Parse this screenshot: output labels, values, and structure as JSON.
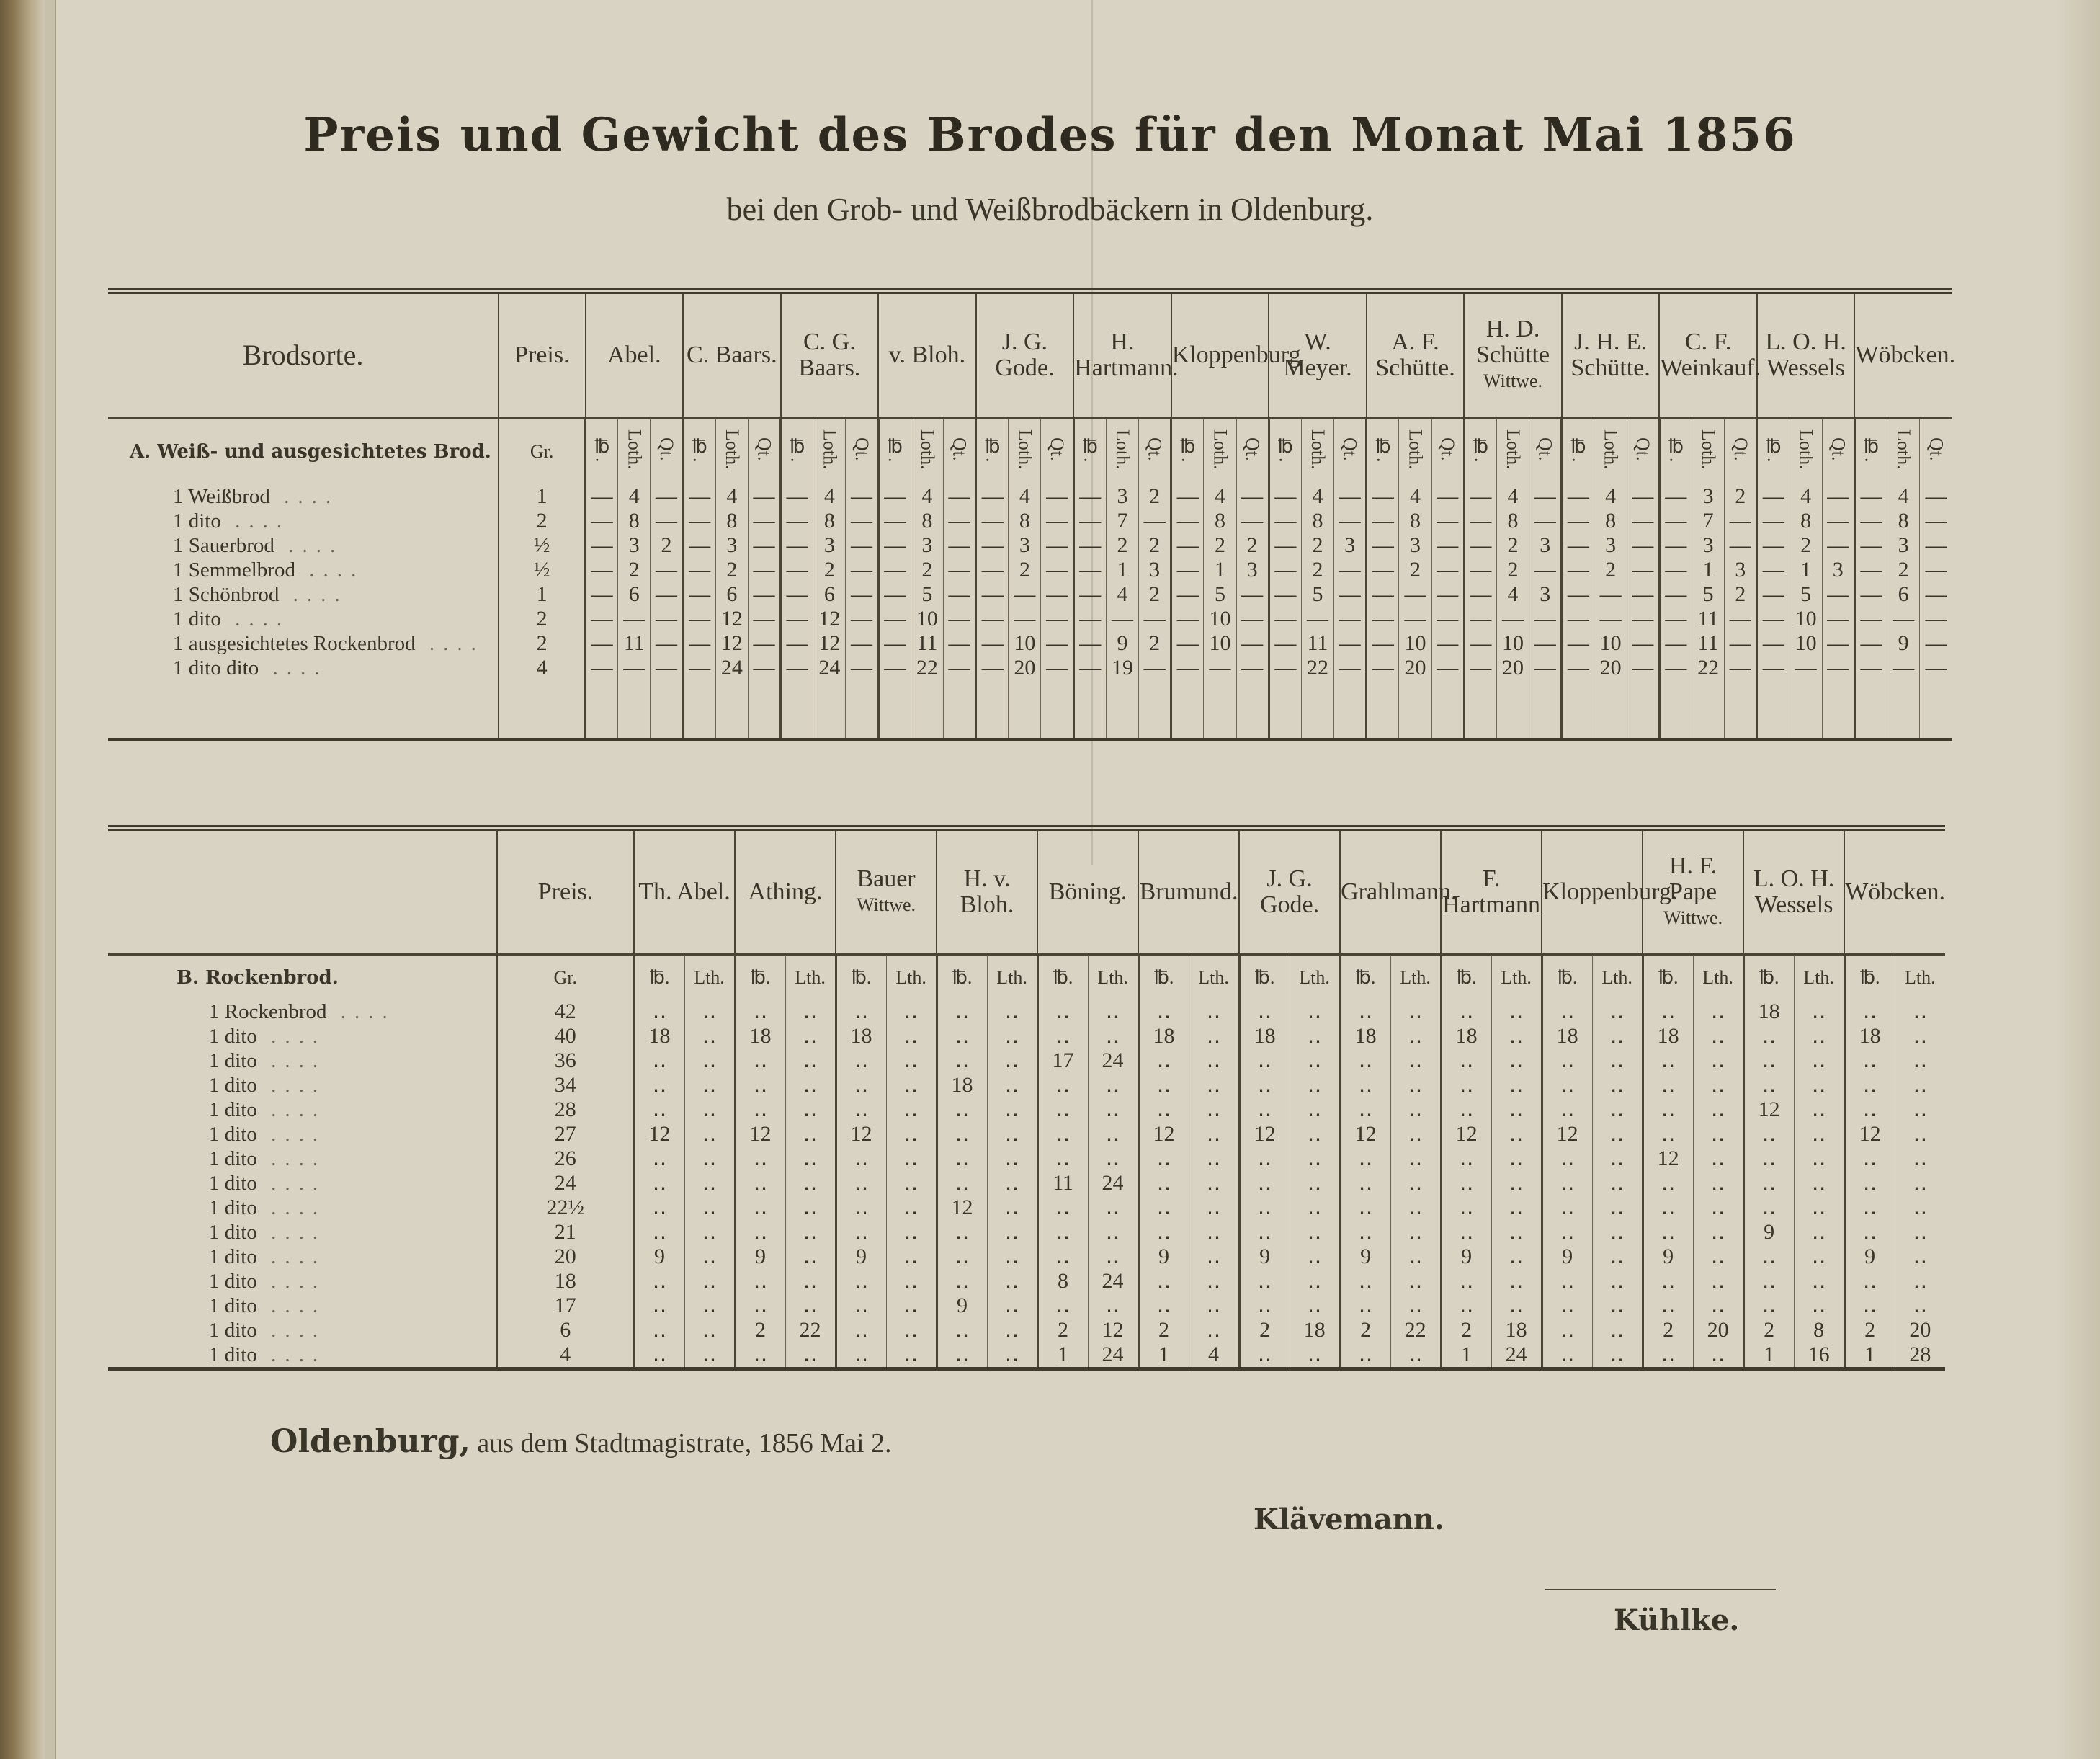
{
  "title": "Preis und Gewicht des Brodes für den Monat Mai 1856",
  "subtitle": "bei den Grob- und Weißbrodbäckern in Oldenburg.",
  "section_a": {
    "col_brodsorte": "Brodsorte.",
    "col_preis": "Preis.",
    "heading": "A. Weiß- und ausgesichtetes Brod.",
    "unit_gr": "Gr.",
    "unit_pfund": "℔.",
    "unit_loth": "Loth.",
    "unit_qt": "Qt.",
    "bakers": [
      {
        "name": "Abel.",
        "sub": ""
      },
      {
        "name": "C. Baars.",
        "sub": ""
      },
      {
        "name": "C. G. Baars.",
        "sub": ""
      },
      {
        "name": "v. Bloh.",
        "sub": ""
      },
      {
        "name": "J. G. Gode.",
        "sub": ""
      },
      {
        "name": "H. Hartmann.",
        "sub": ""
      },
      {
        "name": "Kloppenburg",
        "sub": ""
      },
      {
        "name": "W. Meyer.",
        "sub": ""
      },
      {
        "name": "A. F. Schütte.",
        "sub": ""
      },
      {
        "name": "H. D. Schütte",
        "sub": "Wittwe."
      },
      {
        "name": "J. H. E. Schütte.",
        "sub": ""
      },
      {
        "name": "C. F. Weinkauf.",
        "sub": ""
      },
      {
        "name": "L. O. H. Wessels",
        "sub": ""
      },
      {
        "name": "Wöbcken.",
        "sub": ""
      }
    ],
    "rows": [
      {
        "count": "1",
        "label": "Weißbrod",
        "price": "1"
      },
      {
        "count": "1",
        "label": "dito",
        "price": "2"
      },
      {
        "count": "1",
        "label": "Sauerbrod",
        "price": "½"
      },
      {
        "count": "1",
        "label": "Semmelbrod",
        "price": "½"
      },
      {
        "count": "1",
        "label": "Schönbrod",
        "price": "1"
      },
      {
        "count": "1",
        "label": "dito",
        "price": "2"
      },
      {
        "count": "1",
        "label": "ausgesichtetes Rockenbrod",
        "price": "2"
      },
      {
        "count": "1",
        "label": "dito          dito",
        "price": "4"
      }
    ],
    "values": [
      [
        [
          "—",
          "4",
          "—"
        ],
        [
          "—",
          "8",
          "—"
        ],
        [
          "—",
          "3",
          "2"
        ],
        [
          "—",
          "2",
          "—"
        ],
        [
          "—",
          "6",
          "—"
        ],
        [
          "—",
          "—",
          "—"
        ],
        [
          "—",
          "11",
          "—"
        ],
        [
          "—",
          "—",
          "—"
        ]
      ],
      [
        [
          "—",
          "4",
          "—"
        ],
        [
          "—",
          "8",
          "—"
        ],
        [
          "—",
          "3",
          "—"
        ],
        [
          "—",
          "2",
          "—"
        ],
        [
          "—",
          "6",
          "—"
        ],
        [
          "—",
          "12",
          "—"
        ],
        [
          "—",
          "12",
          "—"
        ],
        [
          "—",
          "24",
          "—"
        ]
      ],
      [
        [
          "—",
          "4",
          "—"
        ],
        [
          "—",
          "8",
          "—"
        ],
        [
          "—",
          "3",
          "—"
        ],
        [
          "—",
          "2",
          "—"
        ],
        [
          "—",
          "6",
          "—"
        ],
        [
          "—",
          "12",
          "—"
        ],
        [
          "—",
          "12",
          "—"
        ],
        [
          "—",
          "24",
          "—"
        ]
      ],
      [
        [
          "—",
          "4",
          "—"
        ],
        [
          "—",
          "8",
          "—"
        ],
        [
          "—",
          "3",
          "—"
        ],
        [
          "—",
          "2",
          "—"
        ],
        [
          "—",
          "5",
          "—"
        ],
        [
          "—",
          "10",
          "—"
        ],
        [
          "—",
          "11",
          "—"
        ],
        [
          "—",
          "22",
          "—"
        ]
      ],
      [
        [
          "—",
          "4",
          "—"
        ],
        [
          "—",
          "8",
          "—"
        ],
        [
          "—",
          "3",
          "—"
        ],
        [
          "—",
          "2",
          "—"
        ],
        [
          "—",
          "—",
          "—"
        ],
        [
          "—",
          "—",
          "—"
        ],
        [
          "—",
          "10",
          "—"
        ],
        [
          "—",
          "20",
          "—"
        ]
      ],
      [
        [
          "—",
          "3",
          "2"
        ],
        [
          "—",
          "7",
          "—"
        ],
        [
          "—",
          "2",
          "2"
        ],
        [
          "—",
          "1",
          "3"
        ],
        [
          "—",
          "4",
          "2"
        ],
        [
          "—",
          "—",
          "—"
        ],
        [
          "—",
          "9",
          "2"
        ],
        [
          "—",
          "19",
          "—"
        ]
      ],
      [
        [
          "—",
          "4",
          "—"
        ],
        [
          "—",
          "8",
          "—"
        ],
        [
          "—",
          "2",
          "2"
        ],
        [
          "—",
          "1",
          "3"
        ],
        [
          "—",
          "5",
          "—"
        ],
        [
          "—",
          "10",
          "—"
        ],
        [
          "—",
          "10",
          "—"
        ],
        [
          "—",
          "—",
          "—"
        ]
      ],
      [
        [
          "—",
          "4",
          "—"
        ],
        [
          "—",
          "8",
          "—"
        ],
        [
          "—",
          "2",
          "3"
        ],
        [
          "—",
          "2",
          "—"
        ],
        [
          "—",
          "5",
          "—"
        ],
        [
          "—",
          "—",
          "—"
        ],
        [
          "—",
          "11",
          "—"
        ],
        [
          "—",
          "22",
          "—"
        ]
      ],
      [
        [
          "—",
          "4",
          "—"
        ],
        [
          "—",
          "8",
          "—"
        ],
        [
          "—",
          "3",
          "—"
        ],
        [
          "—",
          "2",
          "—"
        ],
        [
          "—",
          "—",
          "—"
        ],
        [
          "—",
          "—",
          "—"
        ],
        [
          "—",
          "10",
          "—"
        ],
        [
          "—",
          "20",
          "—"
        ]
      ],
      [
        [
          "—",
          "4",
          "—"
        ],
        [
          "—",
          "8",
          "—"
        ],
        [
          "—",
          "2",
          "3"
        ],
        [
          "—",
          "2",
          "—"
        ],
        [
          "—",
          "4",
          "3"
        ],
        [
          "—",
          "—",
          "—"
        ],
        [
          "—",
          "10",
          "—"
        ],
        [
          "—",
          "20",
          "—"
        ]
      ],
      [
        [
          "—",
          "4",
          "—"
        ],
        [
          "—",
          "8",
          "—"
        ],
        [
          "—",
          "3",
          "—"
        ],
        [
          "—",
          "2",
          "—"
        ],
        [
          "—",
          "—",
          "—"
        ],
        [
          "—",
          "—",
          "—"
        ],
        [
          "—",
          "10",
          "—"
        ],
        [
          "—",
          "20",
          "—"
        ]
      ],
      [
        [
          "—",
          "3",
          "2"
        ],
        [
          "—",
          "7",
          "—"
        ],
        [
          "—",
          "3",
          "—"
        ],
        [
          "—",
          "1",
          "3"
        ],
        [
          "—",
          "5",
          "2"
        ],
        [
          "—",
          "11",
          "—"
        ],
        [
          "—",
          "11",
          "—"
        ],
        [
          "—",
          "22",
          "—"
        ]
      ],
      [
        [
          "—",
          "4",
          "—"
        ],
        [
          "—",
          "8",
          "—"
        ],
        [
          "—",
          "2",
          "—"
        ],
        [
          "—",
          "1",
          "3"
        ],
        [
          "—",
          "5",
          "—"
        ],
        [
          "—",
          "10",
          "—"
        ],
        [
          "—",
          "10",
          "—"
        ],
        [
          "—",
          "—",
          "—"
        ]
      ],
      [
        [
          "—",
          "4",
          "—"
        ],
        [
          "—",
          "8",
          "—"
        ],
        [
          "—",
          "3",
          "—"
        ],
        [
          "—",
          "2",
          "—"
        ],
        [
          "—",
          "6",
          "—"
        ],
        [
          "—",
          "—",
          "—"
        ],
        [
          "—",
          "9",
          "—"
        ],
        [
          "—",
          "—",
          "—"
        ]
      ]
    ]
  },
  "section_b": {
    "col_preis": "Preis.",
    "heading": "B. Rockenbrod.",
    "unit_gr": "Gr.",
    "unit_pfund": "℔.",
    "unit_loth": "Lth.",
    "bakers": [
      {
        "name": "Th. Abel.",
        "sub": ""
      },
      {
        "name": "Athing.",
        "sub": ""
      },
      {
        "name": "Bauer",
        "sub": "Wittwe."
      },
      {
        "name": "H. v. Bloh.",
        "sub": ""
      },
      {
        "name": "Böning.",
        "sub": ""
      },
      {
        "name": "Brumund.",
        "sub": ""
      },
      {
        "name": "J. G. Gode.",
        "sub": ""
      },
      {
        "name": "Grahlmann.",
        "sub": ""
      },
      {
        "name": "F. Hartmann",
        "sub": ""
      },
      {
        "name": "Kloppenburg.",
        "sub": ""
      },
      {
        "name": "H. F. Pape",
        "sub": "Wittwe."
      },
      {
        "name": "L. O. H. Wessels",
        "sub": ""
      },
      {
        "name": "Wöbcken.",
        "sub": ""
      }
    ],
    "rows": [
      {
        "count": "1",
        "label": "Rockenbrod",
        "price": "42"
      },
      {
        "count": "1",
        "label": "dito",
        "price": "40"
      },
      {
        "count": "1",
        "label": "dito",
        "price": "36"
      },
      {
        "count": "1",
        "label": "dito",
        "price": "34"
      },
      {
        "count": "1",
        "label": "dito",
        "price": "28"
      },
      {
        "count": "1",
        "label": "dito",
        "price": "27"
      },
      {
        "count": "1",
        "label": "dito",
        "price": "26"
      },
      {
        "count": "1",
        "label": "dito",
        "price": "24"
      },
      {
        "count": "1",
        "label": "dito",
        "price": "22½"
      },
      {
        "count": "1",
        "label": "dito",
        "price": "21"
      },
      {
        "count": "1",
        "label": "dito",
        "price": "20"
      },
      {
        "count": "1",
        "label": "dito",
        "price": "18"
      },
      {
        "count": "1",
        "label": "dito",
        "price": "17"
      },
      {
        "count": "1",
        "label": "dito",
        "price": "6"
      },
      {
        "count": "1",
        "label": "dito",
        "price": "4"
      }
    ],
    "empty_mark": "‥",
    "values": [
      {
        "40": [
          "18",
          ""
        ],
        "27": [
          "12",
          ""
        ],
        "20": [
          "9",
          ""
        ]
      },
      {
        "40": [
          "18",
          ""
        ],
        "27": [
          "12",
          ""
        ],
        "20": [
          "9",
          ""
        ],
        "6": [
          "2",
          "22"
        ]
      },
      {
        "40": [
          "18",
          ""
        ],
        "27": [
          "12",
          ""
        ],
        "20": [
          "9",
          ""
        ]
      },
      {
        "34": [
          "18",
          ""
        ],
        "22½": [
          "12",
          ""
        ],
        "17": [
          "9",
          ""
        ]
      },
      {
        "36": [
          "17",
          "24"
        ],
        "24": [
          "11",
          "24"
        ],
        "18": [
          "8",
          "24"
        ],
        "6": [
          "2",
          "12"
        ],
        "4": [
          "1",
          "24"
        ]
      },
      {
        "40": [
          "18",
          ""
        ],
        "27": [
          "12",
          ""
        ],
        "20": [
          "9",
          ""
        ],
        "6": [
          "2",
          ""
        ],
        "4": [
          "1",
          "4"
        ]
      },
      {
        "40": [
          "18",
          ""
        ],
        "27": [
          "12",
          ""
        ],
        "20": [
          "9",
          ""
        ],
        "6": [
          "2",
          "18"
        ]
      },
      {
        "40": [
          "18",
          ""
        ],
        "27": [
          "12",
          ""
        ],
        "20": [
          "9",
          ""
        ],
        "6": [
          "2",
          "22"
        ]
      },
      {
        "40": [
          "18",
          ""
        ],
        "27": [
          "12",
          ""
        ],
        "20": [
          "9",
          ""
        ],
        "6": [
          "2",
          "18"
        ],
        "4": [
          "1",
          "24"
        ]
      },
      {
        "40": [
          "18",
          ""
        ],
        "27": [
          "12",
          ""
        ],
        "20": [
          "9",
          ""
        ]
      },
      {
        "40": [
          "18",
          ""
        ],
        "26": [
          "12",
          ""
        ],
        "20": [
          "9",
          ""
        ],
        "6": [
          "2",
          "20"
        ]
      },
      {
        "42": [
          "18",
          ""
        ],
        "28": [
          "12",
          ""
        ],
        "21": [
          "9",
          ""
        ],
        "6": [
          "2",
          "8"
        ],
        "4": [
          "1",
          "16"
        ]
      },
      {
        "40": [
          "18",
          ""
        ],
        "27": [
          "12",
          ""
        ],
        "20": [
          "9",
          ""
        ],
        "6": [
          "2",
          "20"
        ],
        "4": [
          "1",
          "28"
        ]
      }
    ]
  },
  "footer": {
    "place": "Oldenburg,",
    "text": " aus dem Stadtmagistrate, 1856 Mai 2.",
    "signature_1": "Klävemann.",
    "signature_2": "Kühlke."
  }
}
